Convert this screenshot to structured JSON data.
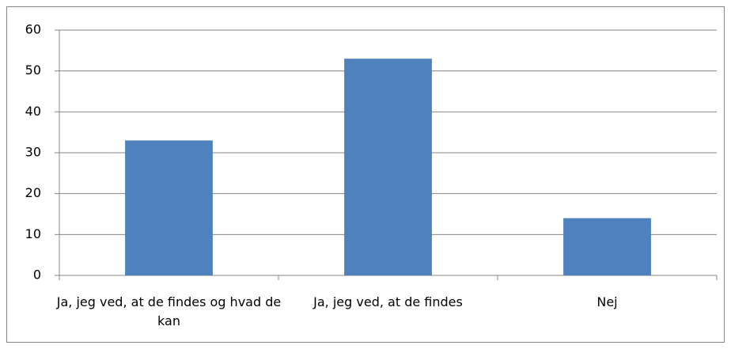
{
  "chart_data": {
    "type": "bar",
    "categories": [
      "Ja, jeg ved, at de findes og hvad de kan",
      "Ja, jeg ved, at de findes",
      "Nej"
    ],
    "values": [
      33,
      53,
      14
    ],
    "color": "#4f81bd",
    "ylim": [
      0,
      60
    ],
    "yticks": [
      0,
      10,
      20,
      30,
      40,
      50,
      60
    ],
    "grid": true
  }
}
